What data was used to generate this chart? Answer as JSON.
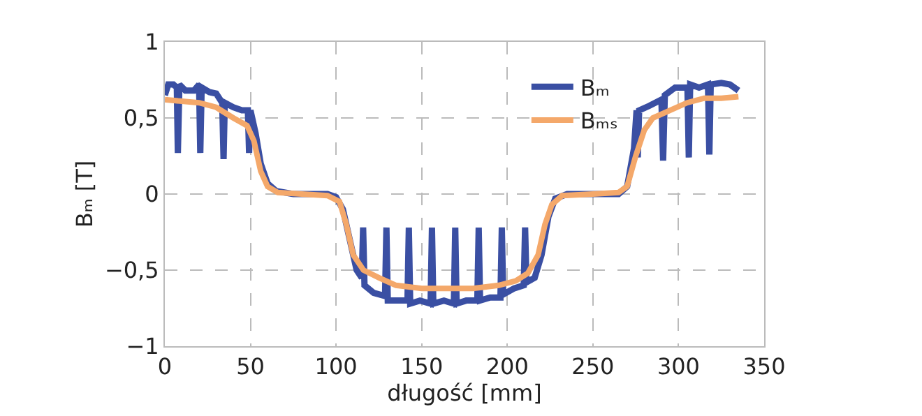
{
  "chart_data": {
    "type": "line",
    "xlabel": "długość [mm]",
    "ylabel": "Bₘ [T]",
    "xlim": [
      0,
      350
    ],
    "xticks": [
      0,
      50,
      100,
      150,
      200,
      250,
      300,
      350
    ],
    "ylim": [
      -1,
      1
    ],
    "yticks": [
      {
        "value": -1,
        "label": "−1"
      },
      {
        "value": -0.5,
        "label": "−0,5"
      },
      0,
      {
        "value": 0.5,
        "label": "0,5"
      },
      1
    ],
    "grid": true,
    "legend": "top",
    "line_style": "solid",
    "marker": "none",
    "series": [
      {
        "name": "Bₘ",
        "color": "#3a4fa3",
        "x": [
          0,
          2,
          5,
          7,
          7.6,
          8.5,
          12,
          17,
          20,
          20.7,
          21.5,
          26,
          30,
          33.5,
          34.3,
          35,
          40,
          45,
          48.5,
          49.2,
          50,
          53,
          56,
          60,
          65,
          75,
          85,
          95,
          100,
          104,
          108,
          112,
          115,
          115.8,
          116.6,
          122,
          128.6,
          129.4,
          130.2,
          136,
          141.7,
          142.5,
          143.3,
          149,
          155.2,
          156,
          156.8,
          163,
          168.8,
          169.6,
          170.4,
          176,
          182.5,
          183.3,
          184.1,
          190,
          196,
          196.8,
          197.6,
          204,
          209.6,
          210.4,
          211.2,
          216,
          220,
          224,
          228,
          235,
          250,
          265,
          270,
          274,
          275.5,
          276.2,
          277,
          283,
          290,
          291,
          292,
          298,
          305.2,
          306,
          306.8,
          312,
          317.2,
          318,
          318.8,
          325,
          330,
          335
        ],
        "values": [
          0.65,
          0.72,
          0.72,
          0.7,
          0.27,
          0.72,
          0.68,
          0.68,
          0.72,
          0.27,
          0.7,
          0.67,
          0.66,
          0.6,
          0.23,
          0.6,
          0.57,
          0.55,
          0.55,
          0.27,
          0.55,
          0.4,
          0.2,
          0.07,
          0.02,
          0.0,
          0.0,
          0.0,
          -0.02,
          -0.1,
          -0.3,
          -0.5,
          -0.55,
          -0.22,
          -0.6,
          -0.65,
          -0.67,
          -0.22,
          -0.7,
          -0.7,
          -0.7,
          -0.22,
          -0.72,
          -0.7,
          -0.72,
          -0.22,
          -0.72,
          -0.7,
          -0.72,
          -0.22,
          -0.72,
          -0.7,
          -0.7,
          -0.22,
          -0.7,
          -0.68,
          -0.68,
          -0.22,
          -0.66,
          -0.62,
          -0.6,
          -0.22,
          -0.58,
          -0.55,
          -0.4,
          -0.15,
          -0.03,
          0.0,
          0.0,
          0.0,
          0.05,
          0.3,
          0.55,
          0.24,
          0.55,
          0.58,
          0.62,
          0.22,
          0.65,
          0.7,
          0.7,
          0.24,
          0.72,
          0.7,
          0.72,
          0.26,
          0.72,
          0.73,
          0.72,
          0.68
        ]
      },
      {
        "name": "Bₘₛ",
        "color": "#f4a86a",
        "x": [
          0,
          10,
          20,
          30,
          40,
          48,
          52,
          56,
          60,
          66,
          80,
          95,
          102,
          106,
          110,
          116,
          125,
          135,
          150,
          165,
          180,
          195,
          205,
          212,
          218,
          222,
          226,
          232,
          250,
          265,
          270,
          275,
          280,
          285,
          295,
          305,
          315,
          325,
          335
        ],
        "values": [
          0.62,
          0.61,
          0.6,
          0.57,
          0.5,
          0.45,
          0.35,
          0.15,
          0.05,
          0.01,
          0.0,
          -0.01,
          -0.05,
          -0.2,
          -0.4,
          -0.5,
          -0.55,
          -0.6,
          -0.62,
          -0.62,
          -0.62,
          -0.6,
          -0.57,
          -0.52,
          -0.4,
          -0.2,
          -0.07,
          -0.01,
          0.0,
          0.01,
          0.05,
          0.25,
          0.42,
          0.5,
          0.55,
          0.6,
          0.63,
          0.63,
          0.64
        ]
      }
    ]
  }
}
